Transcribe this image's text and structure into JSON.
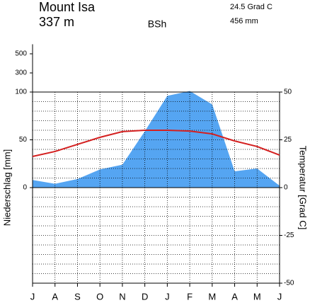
{
  "chart_data": {
    "type": "climate",
    "title": "Mount Isa",
    "subtitle": "337 m",
    "climate_class": "BSh",
    "mean_temperature": "24.5 Grad C",
    "annual_precipitation": "456 mm",
    "y_label": "Niederschlag [mm]",
    "y2_label": "Temperatur [Grad C]",
    "categories": [
      "J",
      "A",
      "S",
      "O",
      "N",
      "D",
      "J",
      "F",
      "M",
      "A",
      "M",
      "J"
    ],
    "series": [
      {
        "name": "Niederschlag",
        "color": "#55a5f2",
        "values": [
          8,
          4,
          9,
          19,
          24,
          59,
          96,
          111,
          87,
          17,
          20,
          2
        ]
      },
      {
        "name": "Temperatur",
        "color": "#d42020",
        "axis": "y2",
        "values": [
          16.3,
          18.9,
          22.6,
          26.3,
          29.3,
          30,
          30,
          29.6,
          28.1,
          24.4,
          21.5,
          17
        ]
      }
    ],
    "ylim": [
      -100,
      600
    ],
    "yticks": [
      0,
      50,
      100,
      300,
      500
    ],
    "y2lim": [
      -50,
      50
    ],
    "y2ticks": [
      50,
      25,
      0,
      -25,
      -50
    ],
    "grid": true
  }
}
